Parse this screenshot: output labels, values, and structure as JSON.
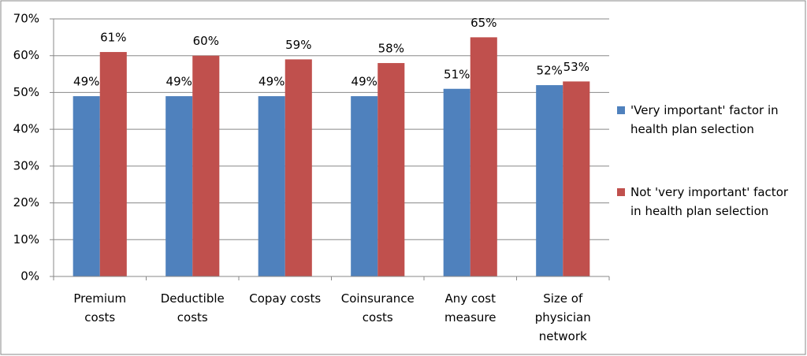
{
  "chart_data": {
    "type": "bar",
    "categories": [
      "Premium costs",
      "Deductible costs",
      "Copay costs",
      "Coinsurance costs",
      "Any cost measure",
      "Size of physician network"
    ],
    "series": [
      {
        "name": "'Very important' factor in health plan selection",
        "color": "#4f81bd",
        "values": [
          49,
          49,
          49,
          49,
          51,
          52
        ],
        "value_labels": [
          "49%",
          "49%",
          "49%",
          "49%",
          "51%",
          "52%"
        ]
      },
      {
        "name": "Not 'very important' factor in health plan selection",
        "color": "#c0504d",
        "values": [
          61,
          60,
          59,
          58,
          65,
          53
        ],
        "value_labels": [
          "61%",
          "60%",
          "59%",
          "58%",
          "65%",
          "53%"
        ]
      }
    ],
    "ylim": [
      0,
      70
    ],
    "yticks": [
      {
        "value": 0,
        "label": "0%"
      },
      {
        "value": 10,
        "label": "10%"
      },
      {
        "value": 20,
        "label": "20%"
      },
      {
        "value": 30,
        "label": "30%"
      },
      {
        "value": 40,
        "label": "40%"
      },
      {
        "value": 50,
        "label": "50%"
      },
      {
        "value": 60,
        "label": "60%"
      },
      {
        "value": 70,
        "label": "70%"
      }
    ],
    "grid": true,
    "legend": "right"
  }
}
